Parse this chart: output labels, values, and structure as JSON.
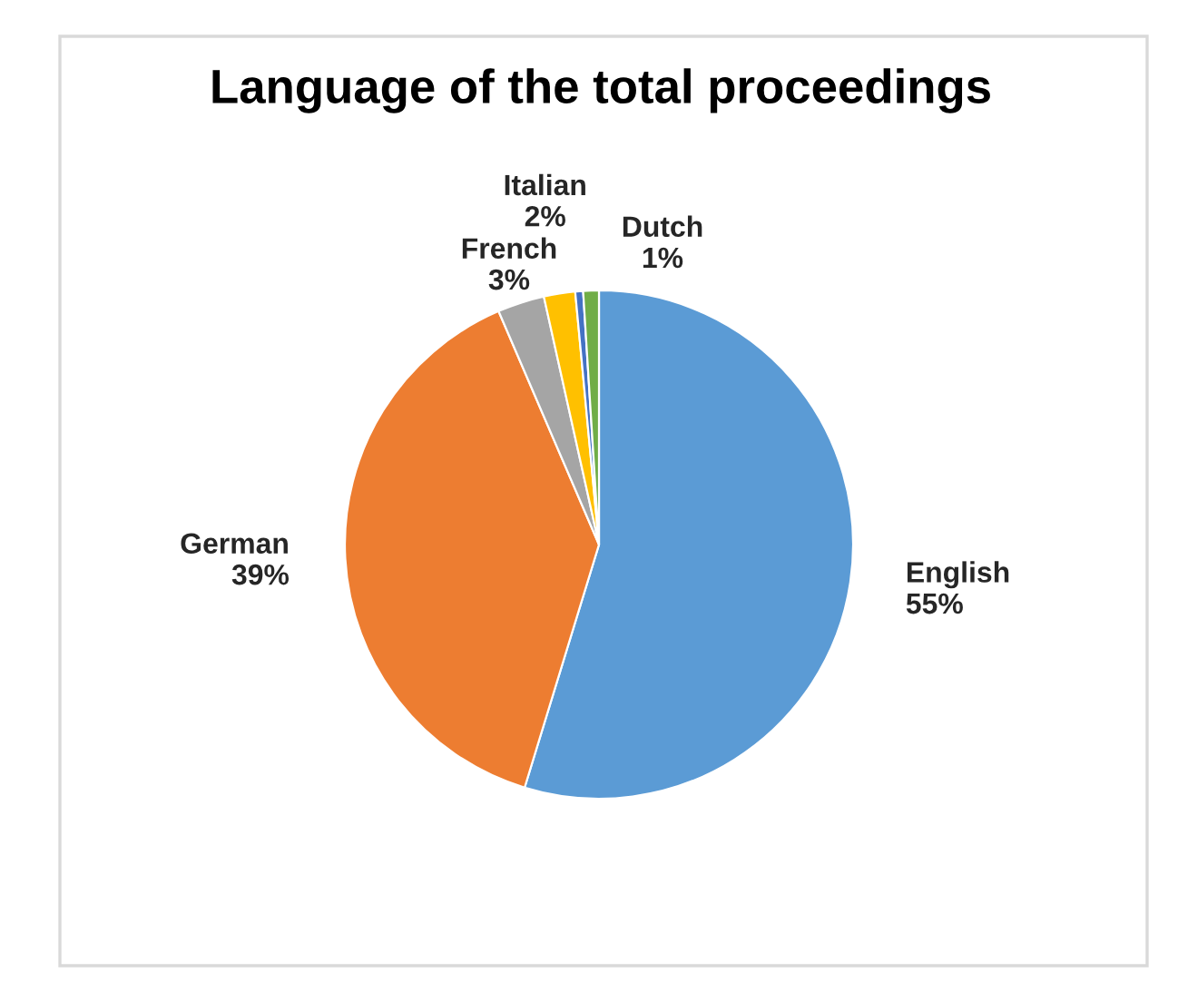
{
  "chart_data": {
    "type": "pie",
    "title": "Language of the total proceedings",
    "categories": [
      "English",
      "German",
      "French",
      "Italian",
      null,
      "Dutch"
    ],
    "values": [
      55,
      39,
      3,
      2,
      0.5,
      1
    ],
    "colors": [
      "#5b9bd5",
      "#ed7d31",
      "#a5a5a5",
      "#ffc000",
      "#4472c4",
      "#70ad47"
    ],
    "value_labels": [
      "55%",
      "39%",
      "3%",
      "2%",
      null,
      "1%"
    ]
  }
}
